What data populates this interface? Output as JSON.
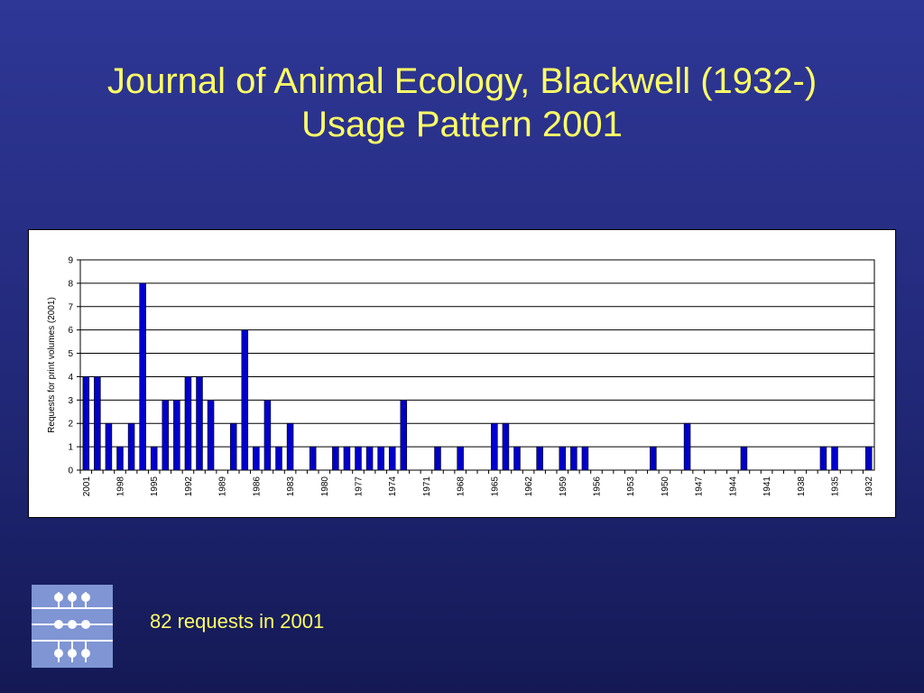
{
  "slide": {
    "title_line1": "Journal of Animal Ecology, Blackwell (1932-)",
    "title_line2": "Usage Pattern 2001",
    "caption": "82 requests in 2001",
    "title_color": "#ffff66",
    "bar_color": "#0000cc"
  },
  "chart_data": {
    "type": "bar",
    "ylabel": "Requests for print volumes (2001)",
    "ylim": [
      0,
      9
    ],
    "yticks": [
      0,
      1,
      2,
      3,
      4,
      5,
      6,
      7,
      8,
      9
    ],
    "grid": true,
    "legend": "none",
    "categories": [
      "2001",
      "2000",
      "1999",
      "1998",
      "1997",
      "1996",
      "1995",
      "1994",
      "1993",
      "1992",
      "1991",
      "1990",
      "1989",
      "1988",
      "1987",
      "1986",
      "1985",
      "1984",
      "1983",
      "1982",
      "1981",
      "1980",
      "1979",
      "1978",
      "1977",
      "1976",
      "1975",
      "1974",
      "1973",
      "1972",
      "1971",
      "1970",
      "1969",
      "1968",
      "1967",
      "1966",
      "1965",
      "1964",
      "1963",
      "1962",
      "1961",
      "1960",
      "1959",
      "1958",
      "1957",
      "1956",
      "1955",
      "1954",
      "1953",
      "1952",
      "1951",
      "1950",
      "1949",
      "1948",
      "1947",
      "1946",
      "1945",
      "1944",
      "1943",
      "1942",
      "1941",
      "1940",
      "1939",
      "1938",
      "1937",
      "1936",
      "1935",
      "1934",
      "1933",
      "1932"
    ],
    "tick_labels": [
      "2001",
      "1998",
      "1995",
      "1992",
      "1989",
      "1986",
      "1983",
      "1980",
      "1977",
      "1974",
      "1971",
      "1968",
      "1965",
      "1962",
      "1959",
      "1956",
      "1953",
      "1950",
      "1947",
      "1944",
      "1941",
      "1938",
      "1935",
      "1932"
    ],
    "values": [
      4,
      4,
      2,
      1,
      2,
      8,
      1,
      3,
      3,
      4,
      4,
      3,
      0,
      2,
      6,
      1,
      3,
      1,
      2,
      0,
      1,
      0,
      1,
      1,
      1,
      1,
      1,
      1,
      3,
      0,
      0,
      1,
      0,
      1,
      0,
      0,
      2,
      2,
      1,
      0,
      1,
      0,
      1,
      1,
      1,
      0,
      0,
      0,
      0,
      0,
      1,
      0,
      0,
      2,
      0,
      0,
      0,
      0,
      1,
      0,
      0,
      0,
      0,
      0,
      0,
      1,
      1,
      0,
      0,
      1
    ]
  }
}
